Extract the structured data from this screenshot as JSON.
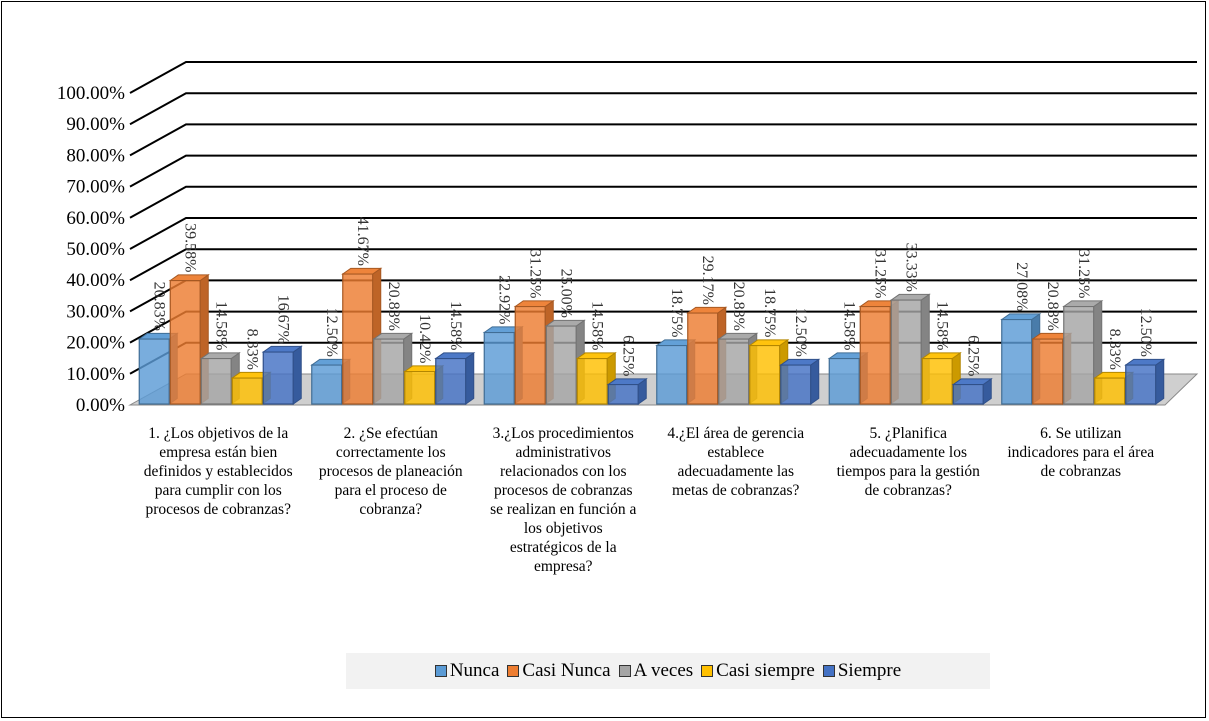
{
  "chart_data": {
    "type": "bar",
    "title": "",
    "xlabel": "",
    "ylabel": "",
    "ylim": [
      0,
      100
    ],
    "yticks": [
      "0.00%",
      "10.00%",
      "20.00%",
      "30.00%",
      "40.00%",
      "50.00%",
      "60.00%",
      "70.00%",
      "80.00%",
      "90.00%",
      "100.00%"
    ],
    "grid": true,
    "legend_position": "bottom",
    "categories": [
      "1. ¿Los objetivos de la empresa están bien definidos y establecidos para cumplir con los procesos de cobranzas?",
      "2. ¿Se efectúan correctamente los procesos de planeación para el proceso de cobranza?",
      "3.¿Los procedimientos administrativos relacionados con los procesos de cobranzas se realizan en función a los objetivos estratégicos de la empresa?",
      "4.¿El área de gerencia establece adecuadamente las metas de cobranzas?",
      "5. ¿Planifica adecuadamente los tiempos para la gestión de cobranzas?",
      "6. Se utilizan indicadores para el área de cobranzas"
    ],
    "series": [
      {
        "name": "Nunca",
        "color": "#5b9bd5",
        "values": [
          20.83,
          12.5,
          22.92,
          18.75,
          14.58,
          27.08
        ],
        "labels": [
          "20.83%",
          "12.50%",
          "22.92%",
          "18.75%",
          "14.58%",
          "27.08%"
        ]
      },
      {
        "name": "Casi Nunca",
        "color": "#ed7d31",
        "values": [
          39.58,
          41.67,
          31.25,
          29.17,
          31.25,
          20.83
        ],
        "labels": [
          "39.58%",
          "41.67%",
          "31.25%",
          "29.17%",
          "31.25%",
          "20.83%"
        ]
      },
      {
        "name": "A veces",
        "color": "#a5a5a5",
        "values": [
          14.58,
          20.83,
          25.0,
          20.83,
          33.33,
          31.25
        ],
        "labels": [
          "14.58%",
          "20.83%",
          "25.00%",
          "20.83%",
          "33.33%",
          "31.25%"
        ]
      },
      {
        "name": "Casi siempre",
        "color": "#ffc000",
        "values": [
          8.33,
          10.42,
          14.58,
          18.75,
          14.58,
          8.33
        ],
        "labels": [
          "8.33%",
          "10.42%",
          "14.58%",
          "18.75%",
          "14.58%",
          "8.33%"
        ]
      },
      {
        "name": "Siempre",
        "color": "#4472c4",
        "values": [
          16.67,
          14.58,
          6.25,
          12.5,
          6.25,
          12.5
        ],
        "labels": [
          "16.67%",
          "14.58%",
          "6.25%",
          "12.50%",
          "6.25%",
          "12.50%"
        ]
      }
    ]
  }
}
